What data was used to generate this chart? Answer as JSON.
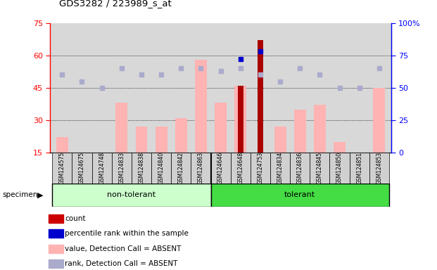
{
  "title": "GDS3282 / 223989_s_at",
  "samples": [
    "GSM124575",
    "GSM124675",
    "GSM124748",
    "GSM124833",
    "GSM124838",
    "GSM124840",
    "GSM124842",
    "GSM124863",
    "GSM124646",
    "GSM124648",
    "GSM124753",
    "GSM124834",
    "GSM124836",
    "GSM124845",
    "GSM124850",
    "GSM124851",
    "GSM124853"
  ],
  "non_tolerant_count": 8,
  "value_absent": [
    22,
    15,
    15,
    38,
    27,
    27,
    31,
    58,
    38,
    46,
    null,
    27,
    35,
    37,
    20,
    15,
    45
  ],
  "rank_absent_pct": [
    60,
    55,
    50,
    65,
    60,
    60,
    65,
    65,
    63,
    65,
    60,
    55,
    65,
    60,
    50,
    50,
    65
  ],
  "count_bars": [
    null,
    null,
    null,
    null,
    null,
    null,
    null,
    null,
    null,
    46,
    67,
    null,
    null,
    null,
    null,
    null,
    null
  ],
  "percentile_rank_pct": [
    null,
    null,
    null,
    null,
    null,
    null,
    null,
    null,
    null,
    72,
    78,
    null,
    null,
    null,
    null,
    null,
    null
  ],
  "ylim_left": [
    15,
    75
  ],
  "ylim_right": [
    0,
    100
  ],
  "yticks_left": [
    15,
    30,
    45,
    60,
    75
  ],
  "yticks_right": [
    0,
    25,
    50,
    75,
    100
  ],
  "grid_vals": [
    30,
    45,
    60
  ],
  "bar_pink": "#FFB3B3",
  "bar_dark_red": "#AA0000",
  "dot_blue_light": "#AAAACC",
  "dot_blue_dark": "#0000CC",
  "group_nontolerant_color": "#CCFFCC",
  "group_tolerant_color": "#44DD44",
  "axis_bg": "#D8D8D8",
  "specimen_label": "specimen",
  "group_labels": [
    "non-tolerant",
    "tolerant"
  ],
  "legend_items": [
    {
      "label": "count",
      "color": "#CC0000"
    },
    {
      "label": "percentile rank within the sample",
      "color": "#0000CC"
    },
    {
      "label": "value, Detection Call = ABSENT",
      "color": "#FFB3B3"
    },
    {
      "label": "rank, Detection Call = ABSENT",
      "color": "#AAAACC"
    }
  ]
}
